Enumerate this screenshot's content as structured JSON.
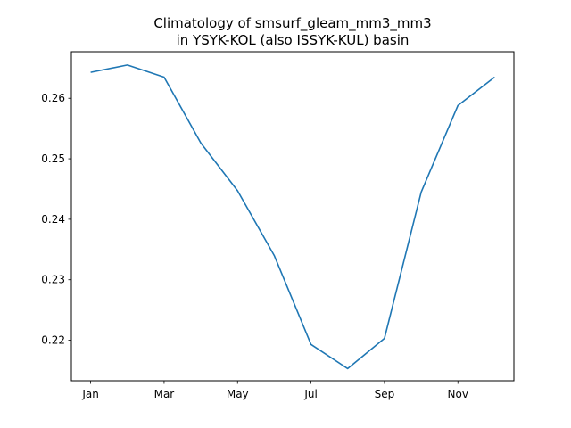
{
  "chart_data": {
    "type": "line",
    "title_lines": [
      "Climatology of smsurf_gleam_mm3_mm3",
      "in YSYK-KOL (also ISSYK-KUL) basin"
    ],
    "xlabel": "",
    "ylabel": "",
    "x": [
      "Jan",
      "Feb",
      "Mar",
      "Apr",
      "May",
      "Jun",
      "Jul",
      "Aug",
      "Sep",
      "Oct",
      "Nov",
      "Dec"
    ],
    "x_tick_labels": [
      "Jan",
      "Mar",
      "May",
      "Jul",
      "Sep",
      "Nov"
    ],
    "y_ticks": [
      0.22,
      0.23,
      0.24,
      0.25,
      0.26
    ],
    "y_tick_labels": [
      "0.22",
      "0.23",
      "0.24",
      "0.25",
      "0.26"
    ],
    "ylim": [
      0.2133,
      0.2677
    ],
    "grid": false,
    "series": [
      {
        "values": [
          0.2643,
          0.2655,
          0.2635,
          0.2526,
          0.2447,
          0.234,
          0.2193,
          0.2153,
          0.2203,
          0.2445,
          0.2588,
          0.2635
        ],
        "color": "#1f77b4"
      }
    ]
  }
}
